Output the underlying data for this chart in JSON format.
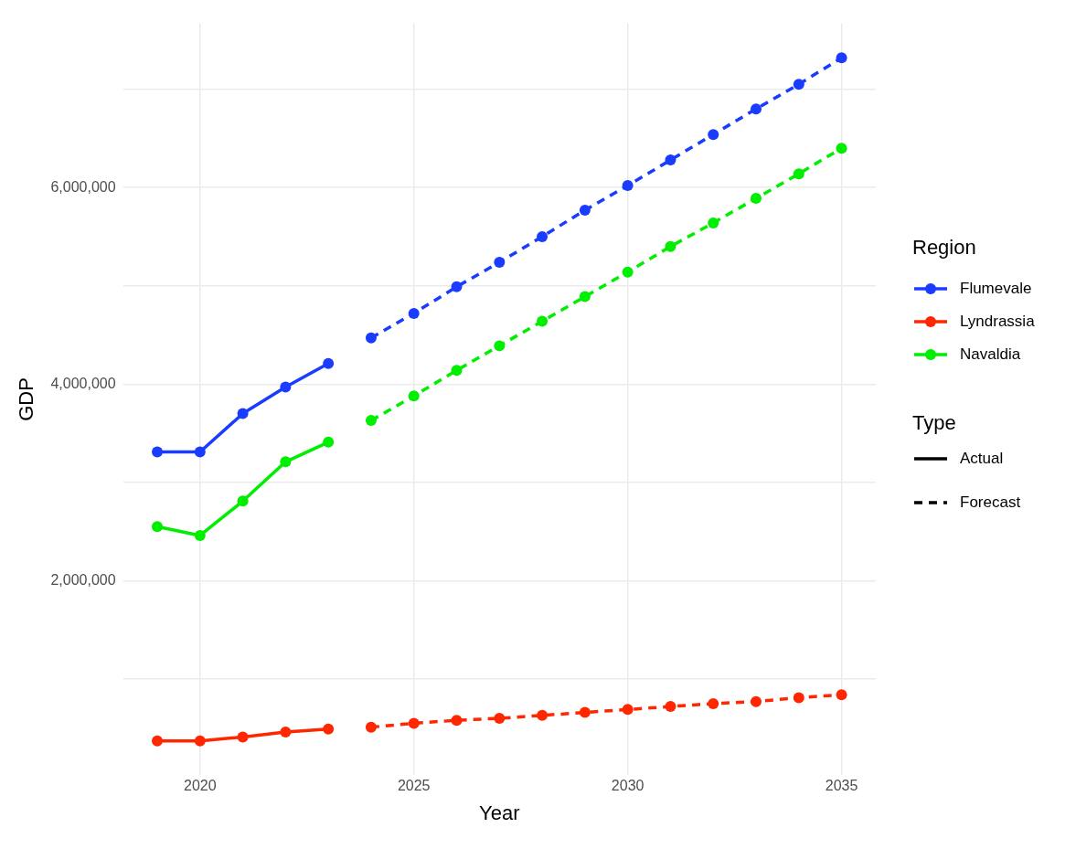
{
  "chart_data": {
    "type": "line",
    "xlabel": "Year",
    "ylabel": "GDP",
    "legend_title": "Region",
    "legend": "right",
    "grid": true,
    "marker": "circle",
    "xlim": [
      2018.2,
      2035.8
    ],
    "xticks": [
      2020,
      2025,
      2030,
      2035
    ],
    "ylim": [
      20000,
      7670000
    ],
    "yticks": [
      {
        "value": 1000000,
        "label": null
      },
      {
        "value": 2000000,
        "label": "2,000,000"
      },
      {
        "value": 3000000,
        "label": null
      },
      {
        "value": 4000000,
        "label": "4,000,000"
      },
      {
        "value": 5000000,
        "label": null
      },
      {
        "value": 6000000,
        "label": "6,000,000"
      },
      {
        "value": 7000000,
        "label": null
      }
    ],
    "annotations": [
      "Type",
      "Actual",
      "Forecast"
    ],
    "series": [
      {
        "name": "Flumevale",
        "color": "#1a3cff",
        "line_style": "solid",
        "x": [
          2019,
          2020,
          2021,
          2022,
          2023
        ],
        "values": [
          3310000,
          3310000,
          3700000,
          3970000,
          4210000
        ]
      },
      {
        "color": "#1a3cff",
        "line_style": "dashed",
        "x": [
          2024,
          2025,
          2026,
          2027,
          2028,
          2029,
          2030,
          2031,
          2032,
          2033,
          2034,
          2035
        ],
        "values": [
          4470000,
          4720000,
          4990000,
          5240000,
          5500000,
          5770000,
          6020000,
          6280000,
          6540000,
          6800000,
          7050000,
          7320000
        ]
      },
      {
        "name": "Lyndrassia",
        "color": "#ff2600",
        "line_style": "solid",
        "x": [
          2019,
          2020,
          2021,
          2022,
          2023
        ],
        "values": [
          370000,
          370000,
          410000,
          460000,
          490000
        ]
      },
      {
        "color": "#ff2600",
        "line_style": "dashed",
        "x": [
          2024,
          2025,
          2026,
          2027,
          2028,
          2029,
          2030,
          2031,
          2032,
          2033,
          2034,
          2035
        ],
        "values": [
          510000,
          550000,
          580000,
          600000,
          630000,
          660000,
          690000,
          720000,
          750000,
          770000,
          810000,
          840000
        ]
      },
      {
        "name": "Navaldia",
        "color": "#00ee00",
        "line_style": "solid",
        "x": [
          2019,
          2020,
          2021,
          2022,
          2023
        ],
        "values": [
          2550000,
          2460000,
          2810000,
          3210000,
          3410000
        ]
      },
      {
        "color": "#00ee00",
        "line_style": "dashed",
        "x": [
          2024,
          2025,
          2026,
          2027,
          2028,
          2029,
          2030,
          2031,
          2032,
          2033,
          2034,
          2035
        ],
        "values": [
          3630000,
          3880000,
          4140000,
          4390000,
          4640000,
          4890000,
          5140000,
          5400000,
          5640000,
          5890000,
          6140000,
          6400000
        ]
      }
    ]
  }
}
